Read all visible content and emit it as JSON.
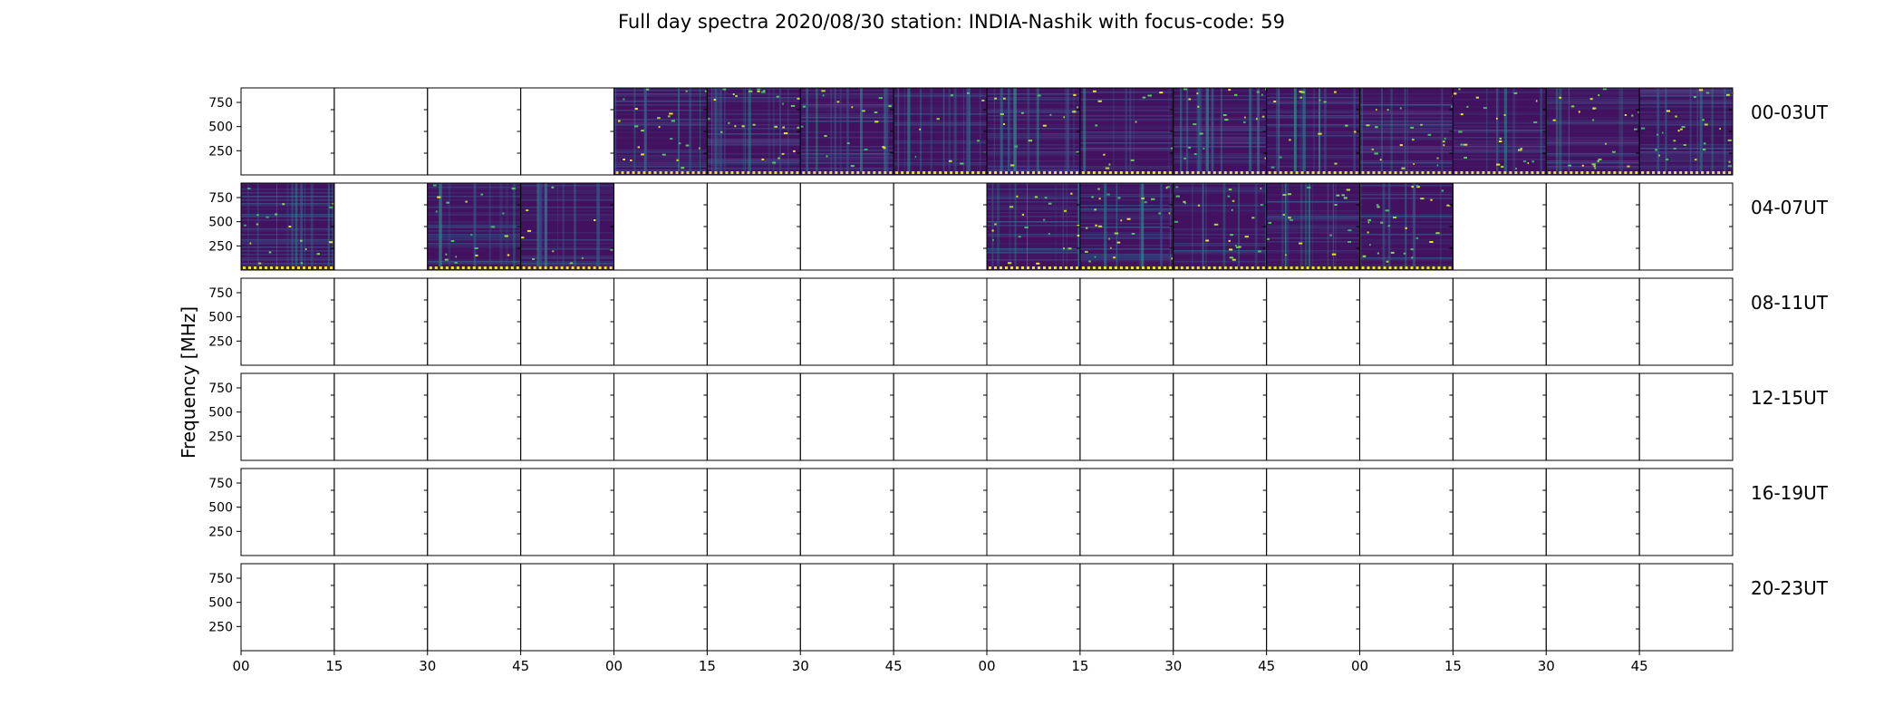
{
  "chart_data": {
    "type": "heatmap",
    "title": "Full day spectra 2020/08/30 station: INDIA-Nashik with focus-code: 59",
    "ylabel": "Frequency [MHz]",
    "xlabel": "",
    "y_ticks": [
      "750",
      "500",
      "250"
    ],
    "y_tick_values": [
      750,
      500,
      250
    ],
    "ylim": [
      0,
      900
    ],
    "x_ticks": [
      "00",
      "15",
      "30",
      "45",
      "00",
      "15",
      "30",
      "45",
      "00",
      "15",
      "30",
      "45",
      "00",
      "15",
      "30",
      "45"
    ],
    "panels_per_row": 16,
    "colormap": "viridis",
    "colors": {
      "low": "#440154",
      "mid": "#21918c",
      "high": "#fde725"
    },
    "rows": [
      {
        "label": "00-03UT",
        "data_present": [
          0,
          0,
          0,
          0,
          1,
          1,
          1,
          1,
          1,
          1,
          1,
          1,
          1,
          1,
          1,
          1
        ]
      },
      {
        "label": "04-07UT",
        "data_present": [
          1,
          0,
          1,
          1,
          0,
          0,
          0,
          0,
          1,
          1,
          1,
          1,
          1,
          0,
          0,
          0
        ]
      },
      {
        "label": "08-11UT",
        "data_present": [
          0,
          0,
          0,
          0,
          0,
          0,
          0,
          0,
          0,
          0,
          0,
          0,
          0,
          0,
          0,
          0
        ]
      },
      {
        "label": "12-15UT",
        "data_present": [
          0,
          0,
          0,
          0,
          0,
          0,
          0,
          0,
          0,
          0,
          0,
          0,
          0,
          0,
          0,
          0
        ]
      },
      {
        "label": "16-19UT",
        "data_present": [
          0,
          0,
          0,
          0,
          0,
          0,
          0,
          0,
          0,
          0,
          0,
          0,
          0,
          0,
          0,
          0
        ]
      },
      {
        "label": "20-23UT",
        "data_present": [
          0,
          0,
          0,
          0,
          0,
          0,
          0,
          0,
          0,
          0,
          0,
          0,
          0,
          0,
          0,
          0
        ]
      }
    ]
  }
}
